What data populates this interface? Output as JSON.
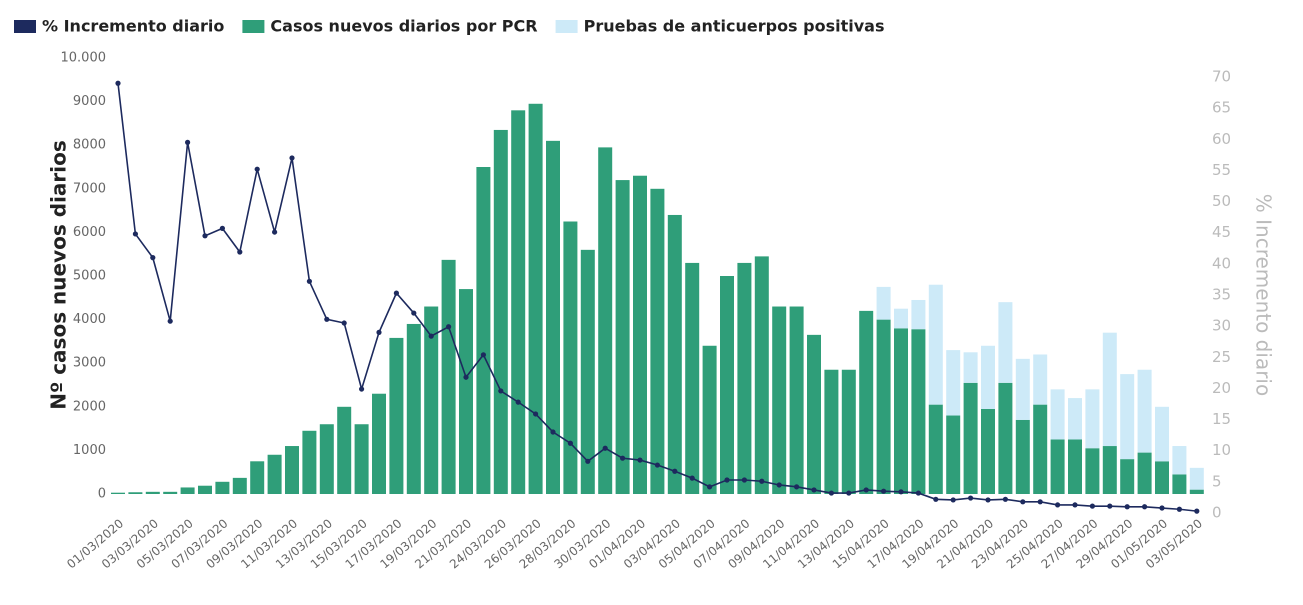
{
  "chart_data": {
    "type": "bar",
    "stacked": true,
    "y_label": "Nº casos nuevos diarios",
    "y2_label": "% Incremento diario",
    "categories": [
      "01/03/2020",
      null,
      "03/03/2020",
      null,
      "05/03/2020",
      null,
      "07/03/2020",
      null,
      "09/03/2020",
      null,
      "11/03/2020",
      null,
      "13/03/2020",
      null,
      "15/03/2020",
      null,
      "17/03/2020",
      null,
      "19/03/2020",
      null,
      "21/03/2020",
      null,
      "24/03/2020",
      null,
      "26/03/2020",
      null,
      "28/03/2020",
      null,
      "30/03/2020",
      null,
      "01/04/2020",
      null,
      "03/04/2020",
      null,
      "05/04/2020",
      null,
      "07/04/2020",
      null,
      "09/04/2020",
      null,
      "11/04/2020",
      null,
      "13/04/2020",
      null,
      "15/04/2020",
      null,
      "17/04/2020",
      null,
      "19/04/2020",
      null,
      "21/04/2020",
      null,
      "23/04/2020",
      null,
      "25/04/2020",
      null,
      "27/04/2020",
      null,
      "29/04/2020",
      null,
      "01/05/2020",
      null,
      "03/05/2020"
    ],
    "series": [
      {
        "name": "% Incremento diario",
        "type": "line",
        "axis": "y2",
        "color": "#1d2a5e",
        "values": [
          69,
          44.8,
          41,
          30.8,
          59.5,
          44.5,
          45.7,
          41.9,
          55.2,
          45.1,
          57,
          37.2,
          31.1,
          30.5,
          19.9,
          29,
          35.3,
          32.1,
          28.4,
          29.9,
          21.8,
          25.4,
          19.6,
          17.8,
          15.9,
          13,
          11.2,
          8.3,
          10.4,
          8.8,
          8.5,
          7.7,
          6.7,
          5.6,
          4.2,
          5.3,
          5.3,
          5.1,
          4.5,
          4.2,
          3.7,
          3.2,
          3.2,
          3.7,
          3.5,
          3.4,
          3.2,
          2.2,
          2.1,
          2.4,
          2.1,
          2.2,
          1.8,
          1.8,
          1.3,
          1.3,
          1.1,
          1.1,
          1,
          1,
          0.8,
          0.6,
          0.3
        ]
      },
      {
        "name": "Casos nuevos diarios por PCR",
        "type": "bar",
        "color": "#2f9e79",
        "values": [
          30,
          40,
          50,
          50,
          150,
          190,
          280,
          370,
          750,
          900,
          1100,
          1450,
          1600,
          2000,
          1600,
          2300,
          3580,
          3900,
          4300,
          5370,
          4700,
          7500,
          8350,
          8800,
          8950,
          8100,
          6250,
          5600,
          7950,
          7200,
          7300,
          7000,
          6400,
          5300,
          3400,
          5000,
          5300,
          5450,
          4300,
          4300,
          3650,
          2850,
          2850,
          4200,
          4000,
          3800,
          3780,
          2050,
          1800,
          2550,
          1950,
          2550,
          1700,
          2050,
          1250,
          1250,
          1050,
          1100,
          800,
          950,
          750,
          450,
          100
        ]
      },
      {
        "name": "Pruebas de anticuerpos positivas",
        "type": "bar",
        "color": "#cdeaf8",
        "values": [
          0,
          0,
          0,
          0,
          0,
          0,
          0,
          0,
          0,
          0,
          0,
          0,
          0,
          0,
          0,
          0,
          0,
          0,
          0,
          0,
          0,
          0,
          0,
          0,
          0,
          0,
          0,
          0,
          0,
          0,
          0,
          0,
          0,
          0,
          0,
          0,
          0,
          0,
          0,
          0,
          0,
          0,
          0,
          0,
          750,
          450,
          670,
          2750,
          1500,
          700,
          1450,
          1850,
          1400,
          1150,
          1150,
          950,
          1350,
          2600,
          1950,
          1900,
          1250,
          650,
          500
        ]
      }
    ],
    "ylim": [
      0,
      10000
    ],
    "yticks": [
      0,
      1000,
      2000,
      3000,
      4000,
      5000,
      6000,
      7000,
      8000,
      9000,
      {
        "value": 10000,
        "label": "10.000"
      }
    ],
    "y2lim": [
      0,
      70
    ],
    "y2ticks": [
      0,
      5,
      10,
      15,
      20,
      25,
      30,
      35,
      40,
      45,
      50,
      55,
      60,
      65,
      70
    ],
    "legend": "top-left",
    "grid": false
  }
}
